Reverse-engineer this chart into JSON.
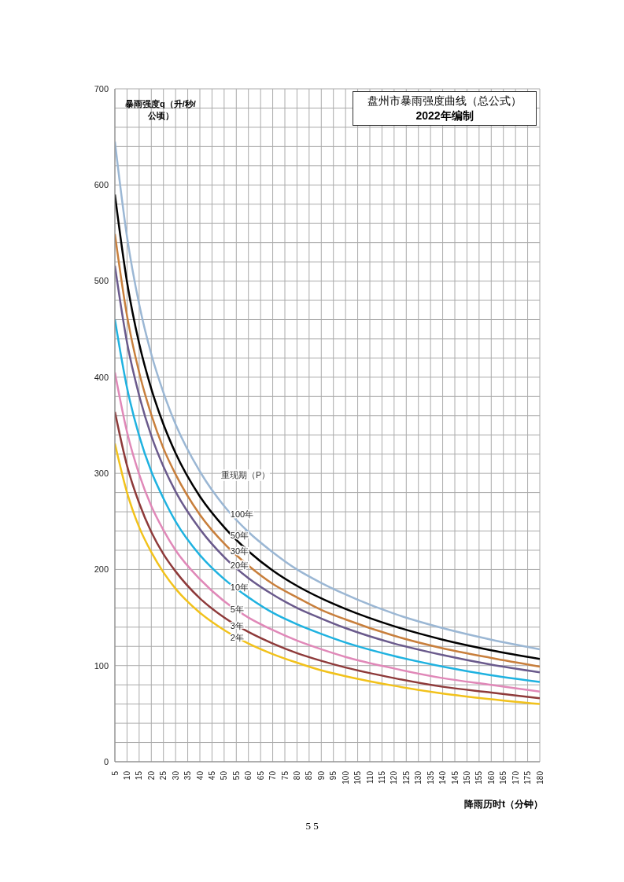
{
  "chart_data": {
    "type": "line",
    "title": "盘州市暴雨强度曲线（总公式）",
    "subtitle": "2022年编制",
    "xlabel": "降雨历时t（分钟）",
    "ylabel": "暴雨强度q（升/秒/公顷）",
    "legend_title": "重现期（P）",
    "annotations": [
      "5 5"
    ],
    "x": [
      5,
      10,
      15,
      20,
      25,
      30,
      40,
      50,
      60,
      70,
      80,
      90,
      100,
      120,
      140,
      160,
      180
    ],
    "series": [
      {
        "name": "100年",
        "color": "#9bb7d4",
        "values": [
          645,
          546,
          476,
          424,
          384,
          351,
          302,
          266,
          239,
          218,
          200,
          186,
          174,
          154,
          139,
          127,
          117
        ]
      },
      {
        "name": "50年",
        "color": "#000000",
        "values": [
          590,
          499,
          435,
          388,
          351,
          321,
          276,
          244,
          219,
          199,
          183,
          170,
          159,
          141,
          127,
          116,
          107
        ]
      },
      {
        "name": "30年",
        "color": "#c87f3c",
        "values": [
          549,
          464,
          405,
          361,
          326,
          299,
          257,
          227,
          204,
          185,
          171,
          158,
          148,
          131,
          118,
          108,
          99
        ]
      },
      {
        "name": "20年",
        "color": "#6a5a8c",
        "values": [
          516,
          436,
          381,
          339,
          307,
          281,
          242,
          213,
          191,
          174,
          160,
          149,
          139,
          123,
          111,
          101,
          93
        ]
      },
      {
        "name": "10年",
        "color": "#1fb2e0",
        "values": [
          460,
          389,
          339,
          302,
          274,
          250,
          215,
          190,
          171,
          155,
          143,
          133,
          124,
          110,
          99,
          90,
          83
        ]
      },
      {
        "name": "5年",
        "color": "#e088b8",
        "values": [
          405,
          343,
          299,
          266,
          241,
          220,
          190,
          167,
          150,
          137,
          126,
          117,
          109,
          97,
          87,
          80,
          73
        ]
      },
      {
        "name": "3年",
        "color": "#8e3a3a",
        "values": [
          364,
          308,
          269,
          239,
          216,
          198,
          170,
          150,
          135,
          123,
          113,
          105,
          98,
          87,
          78,
          72,
          66
        ]
      },
      {
        "name": "2年",
        "color": "#f2c21b",
        "values": [
          331,
          280,
          244,
          218,
          197,
          180,
          155,
          137,
          123,
          112,
          103,
          95,
          89,
          79,
          71,
          65,
          60
        ]
      }
    ],
    "xlim": [
      5,
      180
    ],
    "xticks": [
      5,
      10,
      15,
      20,
      25,
      30,
      35,
      40,
      45,
      50,
      55,
      60,
      65,
      70,
      75,
      80,
      85,
      90,
      95,
      100,
      105,
      110,
      115,
      120,
      125,
      130,
      135,
      140,
      145,
      150,
      155,
      160,
      165,
      170,
      175,
      180
    ],
    "ylim": [
      0,
      700
    ],
    "yticks": [
      0,
      {
        "value": 20,
        "label": null
      },
      {
        "value": 40,
        "label": null
      },
      {
        "value": 60,
        "label": null
      },
      {
        "value": 80,
        "label": null
      },
      100,
      {
        "value": 120,
        "label": null
      },
      {
        "value": 140,
        "label": null
      },
      {
        "value": 160,
        "label": null
      },
      {
        "value": 180,
        "label": null
      },
      200,
      {
        "value": 220,
        "label": null
      },
      {
        "value": 240,
        "label": null
      },
      {
        "value": 260,
        "label": null
      },
      {
        "value": 280,
        "label": null
      },
      300,
      {
        "value": 320,
        "label": null
      },
      {
        "value": 340,
        "label": null
      },
      {
        "value": 360,
        "label": null
      },
      {
        "value": 380,
        "label": null
      },
      400,
      {
        "value": 420,
        "label": null
      },
      {
        "value": 440,
        "label": null
      },
      {
        "value": 460,
        "label": null
      },
      {
        "value": 480,
        "label": null
      },
      500,
      {
        "value": 520,
        "label": null
      },
      {
        "value": 540,
        "label": null
      },
      {
        "value": 560,
        "label": null
      },
      {
        "value": 580,
        "label": null
      },
      600,
      {
        "value": 620,
        "label": null
      },
      {
        "value": 640,
        "label": null
      },
      {
        "value": 660,
        "label": null
      },
      {
        "value": 680,
        "label": null
      },
      700
    ],
    "grid": true,
    "marker": "none",
    "line_style": "solid"
  }
}
